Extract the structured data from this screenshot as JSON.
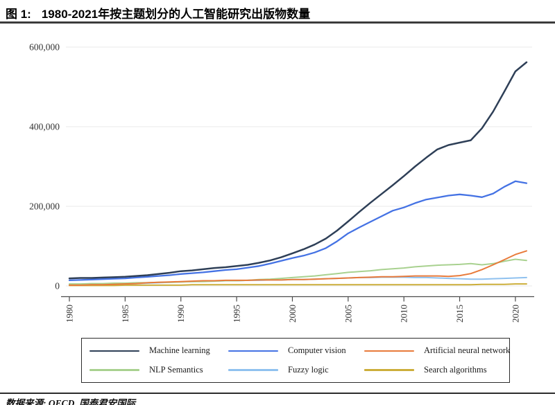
{
  "header": {
    "figure_label": "图 1:",
    "title": "1980-2021年按主题划分的人工智能研究出版物数量"
  },
  "footer": {
    "source": "数据来源: OECD, 国泰君安国际"
  },
  "chart_data": {
    "type": "line",
    "title": "1980-2021年按主题划分的人工智能研究出版物数量",
    "xlabel": "",
    "ylabel": "",
    "xlim": [
      1980,
      2021
    ],
    "ylim": [
      0,
      600000
    ],
    "grid": "horizontal",
    "legend_position": "bottom-box",
    "x": [
      1980,
      1981,
      1982,
      1983,
      1984,
      1985,
      1986,
      1987,
      1988,
      1989,
      1990,
      1991,
      1992,
      1993,
      1994,
      1995,
      1996,
      1997,
      1998,
      1999,
      2000,
      2001,
      2002,
      2003,
      2004,
      2005,
      2006,
      2007,
      2008,
      2009,
      2010,
      2011,
      2012,
      2013,
      2014,
      2015,
      2016,
      2017,
      2018,
      2019,
      2020,
      2021
    ],
    "x_tick_labels": [
      "1980",
      "1985",
      "1990",
      "1995",
      "2000",
      "2005",
      "2010",
      "2015",
      "2020"
    ],
    "y_ticks": [
      {
        "value": 0,
        "label": "0"
      },
      {
        "value": 200000,
        "label": "200,000"
      },
      {
        "value": 400000,
        "label": "400,000"
      },
      {
        "value": 600000,
        "label": "600,000"
      }
    ],
    "series": [
      {
        "name": "Machine learning",
        "color": "#2e3f57",
        "values": [
          19000,
          20000,
          20000,
          21000,
          22000,
          23000,
          25000,
          27000,
          30000,
          33000,
          37000,
          39000,
          42000,
          45000,
          47000,
          50000,
          53000,
          58000,
          64000,
          72000,
          82000,
          92000,
          104000,
          119000,
          139000,
          162000,
          186000,
          209000,
          231000,
          253000,
          276000,
          300000,
          322000,
          343000,
          354000,
          360000,
          366000,
          396000,
          438000,
          488000,
          539000,
          562000
        ]
      },
      {
        "name": "Computer vision",
        "color": "#4472e4",
        "values": [
          14000,
          15000,
          16000,
          17000,
          18000,
          19000,
          21000,
          23000,
          25000,
          27000,
          30000,
          32000,
          34000,
          37000,
          40000,
          42000,
          46000,
          50000,
          56000,
          63000,
          70000,
          76000,
          84000,
          95000,
          112000,
          132000,
          147000,
          161000,
          175000,
          189000,
          197000,
          208000,
          217000,
          222000,
          227000,
          230000,
          227000,
          223000,
          232000,
          249000,
          263000,
          258000
        ]
      },
      {
        "name": "Artificial neural network",
        "color": "#e87a3a",
        "values": [
          2000,
          2000,
          3000,
          3000,
          4000,
          5000,
          6000,
          8000,
          9000,
          10000,
          11000,
          12000,
          13000,
          13000,
          14000,
          14000,
          14000,
          15000,
          15000,
          15000,
          16000,
          16000,
          17000,
          18000,
          19000,
          20000,
          21000,
          22000,
          23000,
          23000,
          24000,
          25000,
          25000,
          25000,
          24000,
          26000,
          31000,
          41000,
          53000,
          66000,
          79000,
          88000
        ]
      },
      {
        "name": "NLP Semantics",
        "color": "#a8d18f",
        "values": [
          5000,
          5000,
          6000,
          6000,
          7000,
          7000,
          8000,
          8000,
          9000,
          9000,
          10000,
          11000,
          11000,
          12000,
          13000,
          13000,
          14000,
          16000,
          17000,
          19000,
          21000,
          23000,
          25000,
          28000,
          31000,
          34000,
          36000,
          38000,
          41000,
          43000,
          45000,
          48000,
          50000,
          52000,
          53000,
          54000,
          56000,
          53000,
          56000,
          62000,
          67000,
          64000
        ]
      },
      {
        "name": "Fuzzy logic",
        "color": "#8fc1ef",
        "values": [
          3000,
          3000,
          4000,
          4000,
          5000,
          5000,
          6000,
          7000,
          8000,
          9000,
          10000,
          11000,
          12000,
          12000,
          13000,
          13000,
          14000,
          14000,
          15000,
          15000,
          16000,
          16000,
          17000,
          18000,
          19000,
          20000,
          21000,
          21000,
          22000,
          22000,
          22000,
          21000,
          21000,
          20000,
          19000,
          18000,
          17000,
          17000,
          18000,
          19000,
          20000,
          21000
        ]
      },
      {
        "name": "Search algorithms",
        "color": "#ccae3a",
        "values": [
          1000,
          1000,
          1000,
          1000,
          1000,
          2000,
          2000,
          2000,
          2000,
          2000,
          2000,
          3000,
          3000,
          3000,
          3000,
          3000,
          3000,
          3000,
          3000,
          3000,
          3000,
          3000,
          3000,
          3000,
          3000,
          3000,
          3000,
          3000,
          3000,
          3000,
          3000,
          3000,
          3000,
          3000,
          3000,
          3000,
          3000,
          4000,
          4000,
          4000,
          5000,
          5000
        ]
      }
    ]
  }
}
